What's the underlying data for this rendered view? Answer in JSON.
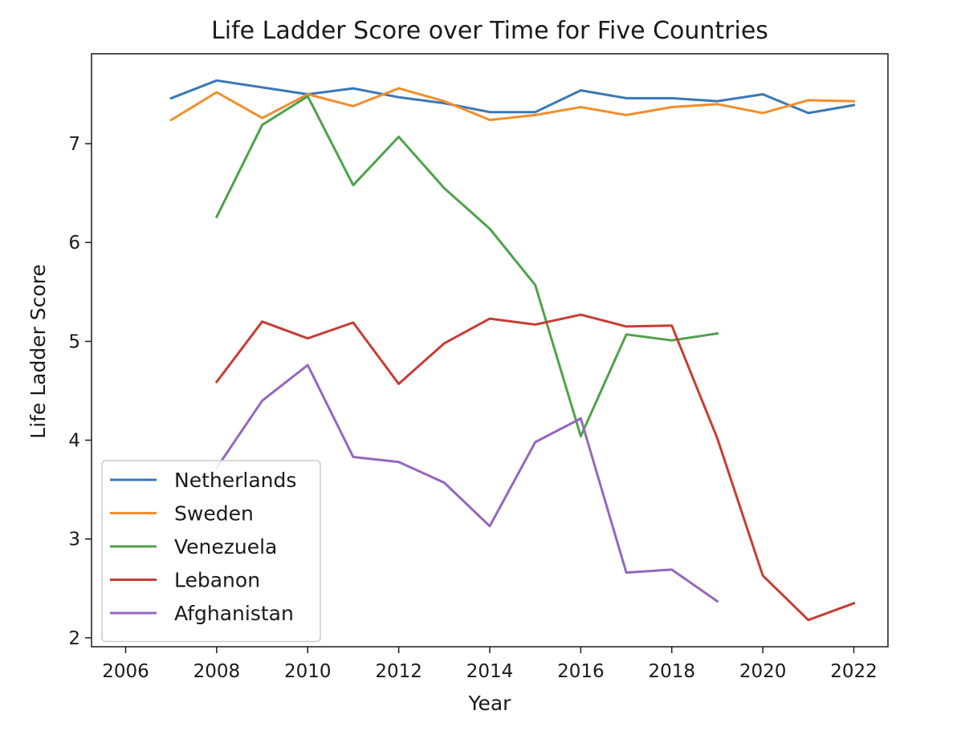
{
  "chart_data": {
    "type": "line",
    "title": "Life Ladder Score over Time for Five Countries",
    "xlabel": "Year",
    "ylabel": "Life Ladder Score",
    "xlim": [
      2005.25,
      2022.75
    ],
    "ylim": [
      1.91,
      7.91
    ],
    "xticks": [
      2006,
      2008,
      2010,
      2012,
      2014,
      2016,
      2018,
      2020,
      2022
    ],
    "yticks": [
      2,
      3,
      4,
      5,
      6,
      7
    ],
    "grid": false,
    "legend_position": "lower-left",
    "series": [
      {
        "name": "Netherlands",
        "color": "#3a78b5",
        "x": [
          2007,
          2008,
          2010,
          2011,
          2012,
          2013,
          2014,
          2015,
          2016,
          2017,
          2018,
          2019,
          2020,
          2021,
          2022
        ],
        "y": [
          7.46,
          7.64,
          7.5,
          7.56,
          7.47,
          7.41,
          7.32,
          7.32,
          7.54,
          7.46,
          7.46,
          7.43,
          7.5,
          7.31,
          7.39
        ]
      },
      {
        "name": "Sweden",
        "color": "#f28e2b",
        "x": [
          2007,
          2008,
          2009,
          2010,
          2011,
          2012,
          2013,
          2014,
          2015,
          2016,
          2017,
          2018,
          2019,
          2020,
          2021,
          2022
        ],
        "y": [
          7.24,
          7.52,
          7.26,
          7.5,
          7.38,
          7.56,
          7.43,
          7.24,
          7.29,
          7.37,
          7.29,
          7.37,
          7.4,
          7.31,
          7.44,
          7.43
        ]
      },
      {
        "name": "Venezuela",
        "color": "#4ea24a",
        "x": [
          2008,
          2009,
          2010,
          2011,
          2012,
          2013,
          2014,
          2015,
          2016,
          2017,
          2018,
          2019
        ],
        "y": [
          6.26,
          7.19,
          7.48,
          6.58,
          7.07,
          6.55,
          6.14,
          5.57,
          4.04,
          5.07,
          5.01,
          5.08
        ]
      },
      {
        "name": "Lebanon",
        "color": "#c83c34",
        "x": [
          2008,
          2009,
          2010,
          2011,
          2012,
          2013,
          2014,
          2015,
          2016,
          2017,
          2018,
          2019,
          2020,
          2021,
          2022
        ],
        "y": [
          4.59,
          5.2,
          5.03,
          5.19,
          4.57,
          4.98,
          5.23,
          5.17,
          5.27,
          5.15,
          5.16,
          4.02,
          2.63,
          2.18,
          2.35
        ]
      },
      {
        "name": "Afghanistan",
        "color": "#9467bd",
        "x": [
          2008,
          2009,
          2010,
          2011,
          2012,
          2013,
          2014,
          2015,
          2016,
          2017,
          2018,
          2019
        ],
        "y": [
          3.72,
          4.4,
          4.76,
          3.83,
          3.78,
          3.57,
          3.13,
          3.98,
          4.22,
          2.66,
          2.69,
          2.37
        ]
      }
    ]
  }
}
